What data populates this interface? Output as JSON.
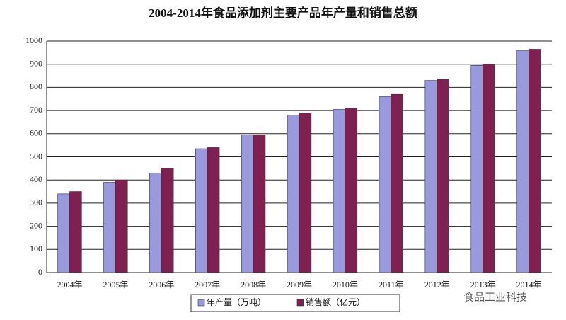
{
  "chart_data": {
    "type": "bar",
    "title": "2004-2014年食品添加剂主要产品年产量和销售总额",
    "categories": [
      "2004年",
      "2005年",
      "2006年",
      "2007年",
      "2008年",
      "2009年",
      "2010年",
      "2011年",
      "2012年",
      "2013年",
      "2014年"
    ],
    "series": [
      {
        "name": "年产量（万吨）",
        "color": "#9999dd",
        "values": [
          340,
          390,
          430,
          535,
          595,
          680,
          705,
          760,
          830,
          895,
          960
        ]
      },
      {
        "name": "销售额（亿元）",
        "color": "#7f2050",
        "values": [
          350,
          400,
          450,
          540,
          595,
          690,
          710,
          770,
          835,
          900,
          965
        ]
      }
    ],
    "ylim": [
      0,
      1000
    ],
    "yticks": [
      0,
      100,
      200,
      300,
      400,
      500,
      600,
      700,
      800,
      900,
      1000
    ],
    "grid": true,
    "watermark": "食品工业科技"
  }
}
